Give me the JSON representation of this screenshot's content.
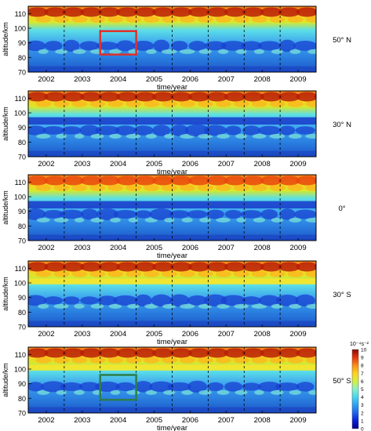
{
  "chart_data": {
    "type": "heatmap",
    "xlabel": "time/year",
    "ylabel": "altitude/km",
    "x_tick_labels": [
      "2002",
      "2003",
      "2004",
      "2005",
      "2006",
      "2007",
      "2008",
      "2009"
    ],
    "y_tick_labels": [
      "70",
      "80",
      "90",
      "100",
      "110"
    ],
    "xlim": [
      2001.5,
      2009.5
    ],
    "ylim": [
      70,
      115
    ],
    "year_boundaries": [
      2002.5,
      2003.5,
      2004.5,
      2005.5,
      2006.5,
      2007.5,
      2008.5
    ],
    "panels": [
      {
        "label": "50° N",
        "highlight": {
          "x": [
            2003.5,
            2004.5
          ],
          "y": [
            82,
            98
          ],
          "color": "#e0302a"
        }
      },
      {
        "label": "30° N"
      },
      {
        "label": "0°"
      },
      {
        "label": "30° S"
      },
      {
        "label": "50° S",
        "highlight": {
          "x": [
            2003.5,
            2004.5
          ],
          "y": [
            79,
            96
          ],
          "color": "#2e7d4a"
        }
      }
    ],
    "colorbar": {
      "title": "10⁻⁴s⁻²",
      "ticks": [
        "0",
        "1",
        "2",
        "3",
        "4",
        "5",
        "6",
        "7",
        "8",
        "9",
        "10"
      ],
      "range": [
        0,
        10
      ]
    }
  }
}
